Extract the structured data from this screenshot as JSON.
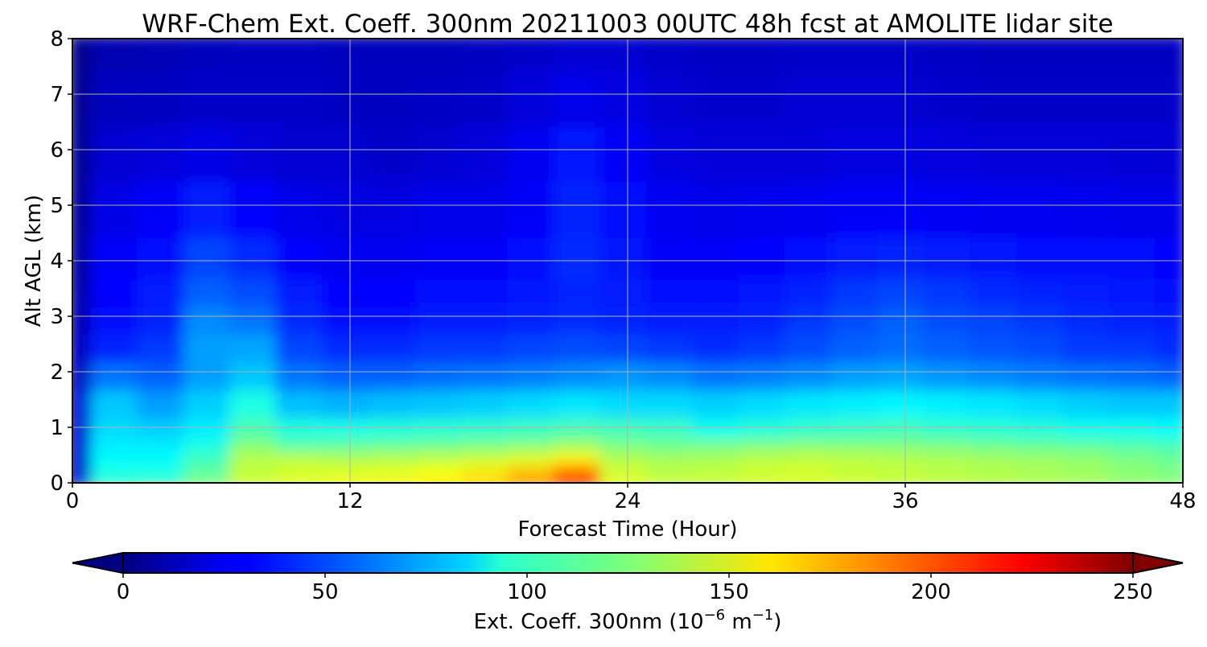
{
  "chart_data": {
    "type": "heatmap",
    "title": "WRF-Chem Ext. Coeff. 300nm  20211003 00UTC 48h fcst at AMOLITE lidar site",
    "xlabel": "Forecast Time (Hour)",
    "ylabel": "Alt AGL (km)",
    "xlim": [
      0,
      48
    ],
    "ylim": [
      0,
      8
    ],
    "xticks": [
      0,
      12,
      24,
      36,
      48
    ],
    "yticks": [
      0,
      1,
      2,
      3,
      4,
      5,
      6,
      7,
      8
    ],
    "grid": true,
    "colorscale": "jet",
    "x": [
      0,
      2,
      4,
      6,
      8,
      10,
      12,
      14,
      16,
      18,
      20,
      22,
      24,
      26,
      28,
      30,
      32,
      34,
      36,
      38,
      40,
      42,
      44,
      46,
      48
    ],
    "y": [
      0,
      0.25,
      0.5,
      0.75,
      1,
      1.5,
      2,
      2.5,
      3,
      3.5,
      4,
      5,
      6,
      7,
      8
    ],
    "z": [
      [
        20,
        110,
        115,
        128,
        145,
        152,
        158,
        160,
        162,
        168,
        180,
        195,
        150,
        142,
        142,
        145,
        147,
        144,
        142,
        140,
        138,
        136,
        134,
        130,
        128
      ],
      [
        20,
        100,
        100,
        118,
        142,
        145,
        148,
        150,
        155,
        162,
        175,
        200,
        146,
        140,
        142,
        145,
        146,
        143,
        142,
        140,
        138,
        136,
        133,
        128,
        125
      ],
      [
        20,
        95,
        95,
        110,
        138,
        142,
        138,
        140,
        142,
        145,
        150,
        160,
        138,
        135,
        136,
        140,
        142,
        140,
        138,
        136,
        134,
        132,
        130,
        125,
        120
      ],
      [
        20,
        90,
        90,
        100,
        128,
        115,
        118,
        120,
        122,
        125,
        128,
        135,
        125,
        122,
        124,
        126,
        128,
        127,
        126,
        125,
        122,
        120,
        118,
        115,
        112
      ],
      [
        20,
        85,
        82,
        90,
        112,
        102,
        100,
        102,
        104,
        106,
        108,
        112,
        110,
        108,
        98,
        102,
        106,
        108,
        110,
        106,
        104,
        102,
        98,
        98,
        95
      ],
      [
        20,
        80,
        70,
        82,
        100,
        78,
        75,
        78,
        80,
        82,
        85,
        88,
        85,
        85,
        82,
        85,
        88,
        90,
        92,
        90,
        88,
        85,
        82,
        80,
        80
      ],
      [
        15,
        60,
        55,
        70,
        80,
        60,
        55,
        55,
        58,
        60,
        62,
        65,
        68,
        65,
        60,
        62,
        65,
        70,
        72,
        68,
        65,
        62,
        60,
        58,
        55
      ],
      [
        15,
        40,
        45,
        70,
        72,
        48,
        42,
        42,
        45,
        45,
        48,
        50,
        48,
        45,
        42,
        45,
        50,
        55,
        58,
        55,
        52,
        50,
        45,
        45,
        42
      ],
      [
        12,
        35,
        40,
        65,
        60,
        42,
        35,
        35,
        38,
        38,
        40,
        42,
        40,
        38,
        38,
        40,
        45,
        50,
        55,
        50,
        48,
        45,
        42,
        40,
        38
      ],
      [
        10,
        32,
        38,
        55,
        50,
        38,
        32,
        32,
        33,
        34,
        36,
        40,
        38,
        34,
        34,
        36,
        40,
        45,
        48,
        45,
        42,
        40,
        38,
        36,
        35
      ],
      [
        8,
        30,
        35,
        48,
        42,
        32,
        28,
        28,
        30,
        30,
        33,
        42,
        36,
        30,
        30,
        32,
        35,
        38,
        40,
        38,
        36,
        35,
        34,
        33,
        32
      ],
      [
        6,
        25,
        30,
        38,
        32,
        26,
        24,
        24,
        26,
        26,
        30,
        40,
        34,
        28,
        26,
        27,
        28,
        30,
        30,
        29,
        28,
        28,
        27,
        26,
        26
      ],
      [
        5,
        20,
        22,
        25,
        22,
        20,
        20,
        18,
        20,
        22,
        28,
        36,
        30,
        24,
        22,
        22,
        22,
        24,
        24,
        23,
        22,
        22,
        22,
        21,
        21
      ],
      [
        4,
        15,
        16,
        18,
        18,
        18,
        16,
        16,
        17,
        18,
        22,
        26,
        24,
        20,
        19,
        19,
        20,
        20,
        20,
        19,
        18,
        18,
        18,
        18,
        18
      ],
      [
        3,
        12,
        13,
        15,
        16,
        16,
        15,
        15,
        15,
        16,
        18,
        20,
        20,
        18,
        17,
        17,
        18,
        18,
        18,
        17,
        16,
        16,
        16,
        16,
        16
      ]
    ],
    "colorbar": {
      "label_main": "Ext. Coeff. 300nm  (10",
      "label_exp1": "−6",
      "label_mid": " m",
      "label_exp2": "−1",
      "label_end": ")",
      "min": 0,
      "max": 250,
      "ticks": [
        0,
        50,
        100,
        150,
        200,
        250
      ],
      "extend": "both"
    }
  }
}
